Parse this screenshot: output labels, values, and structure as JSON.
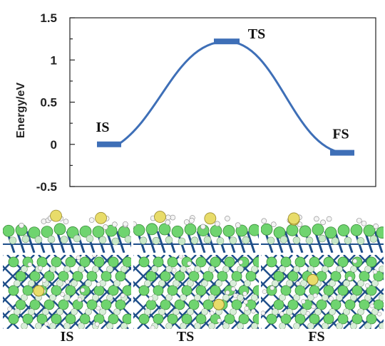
{
  "chart_data": {
    "type": "line",
    "ylabel": "Energy/eV",
    "xlabel": "",
    "ylim": [
      -0.5,
      1.5
    ],
    "yticks": [
      "-0.5",
      "0",
      "0.5",
      "1",
      "1.5"
    ],
    "grid": false,
    "series": [
      {
        "points": [
          {
            "label": "IS",
            "x": 0,
            "y": 0.0
          },
          {
            "label": "TS",
            "x": 1,
            "y": 1.22
          },
          {
            "label": "FS",
            "x": 2,
            "y": -0.1
          }
        ]
      }
    ],
    "line_color": "#3e6fb7"
  },
  "structures": {
    "labels": [
      "IS",
      "TS",
      "FS"
    ]
  }
}
